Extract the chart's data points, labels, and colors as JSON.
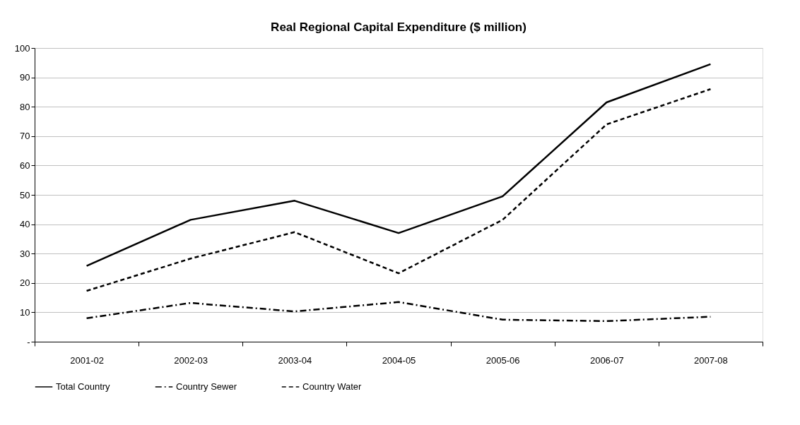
{
  "chart_data": {
    "type": "line",
    "title": "Real Regional Capital Expenditure ($ million)",
    "categories": [
      "2001-02",
      "2002-03",
      "2003-04",
      "2004-05",
      "2005-06",
      "2006-07",
      "2007-08"
    ],
    "series": [
      {
        "name": "Total Country",
        "color": "#000000",
        "line_style": "solid",
        "values": [
          25.8,
          41.5,
          48,
          37,
          49.5,
          81.5,
          94.5
        ]
      },
      {
        "name": "Country Sewer",
        "color": "#000000",
        "line_style": "dashdot",
        "values": [
          8,
          13.2,
          10.3,
          13.5,
          7.5,
          7,
          8.5
        ]
      },
      {
        "name": "Country Water",
        "color": "#000000",
        "line_style": "dashed",
        "values": [
          17.3,
          28.3,
          37.3,
          23.3,
          41.5,
          74,
          86
        ]
      }
    ],
    "ylim": [
      0,
      100
    ],
    "yticks": [
      {
        "value": 0,
        "label": "-"
      },
      10,
      20,
      30,
      40,
      50,
      60,
      70,
      80,
      90,
      100
    ],
    "grid": "y",
    "legend": "bottom",
    "marker": "none"
  }
}
